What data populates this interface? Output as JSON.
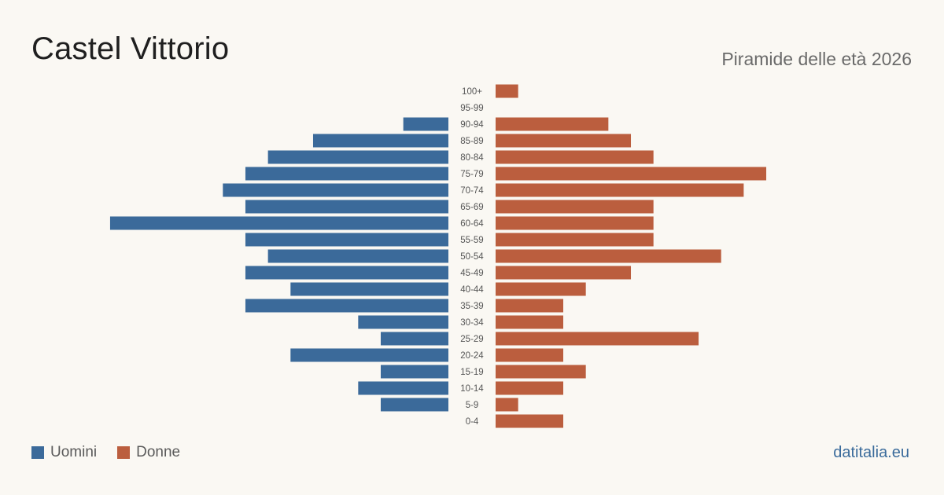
{
  "header": {
    "title": "Castel Vittorio",
    "subtitle": "Piramide delle età 2026"
  },
  "legend": {
    "men_label": "Uomini",
    "women_label": "Donne"
  },
  "footer": {
    "site": "datitalia.eu"
  },
  "colors": {
    "men": "#3b6a9a",
    "women": "#bb5e3e",
    "tick_text": "#555555",
    "background": "#faf8f3"
  },
  "chart_data": {
    "type": "bar",
    "orientation": "horizontal-pyramid",
    "title": "Castel Vittorio",
    "subtitle": "Piramide delle età 2026",
    "categories": [
      "100+",
      "95-99",
      "90-94",
      "85-89",
      "80-84",
      "75-79",
      "70-74",
      "65-69",
      "60-64",
      "55-59",
      "50-54",
      "45-49",
      "40-44",
      "35-39",
      "30-34",
      "25-29",
      "20-24",
      "15-19",
      "10-14",
      "5-9",
      "0-4"
    ],
    "series": [
      {
        "name": "Uomini",
        "values": [
          0,
          0,
          2,
          6,
          8,
          9,
          10,
          9,
          15,
          9,
          8,
          9,
          7,
          9,
          4,
          3,
          7,
          3,
          4,
          3,
          0
        ]
      },
      {
        "name": "Donne",
        "values": [
          1,
          0,
          5,
          6,
          7,
          12,
          11,
          7,
          7,
          7,
          10,
          6,
          4,
          3,
          3,
          9,
          3,
          4,
          3,
          1,
          3
        ]
      }
    ],
    "legend_position": "bottom-left",
    "grid": false
  }
}
